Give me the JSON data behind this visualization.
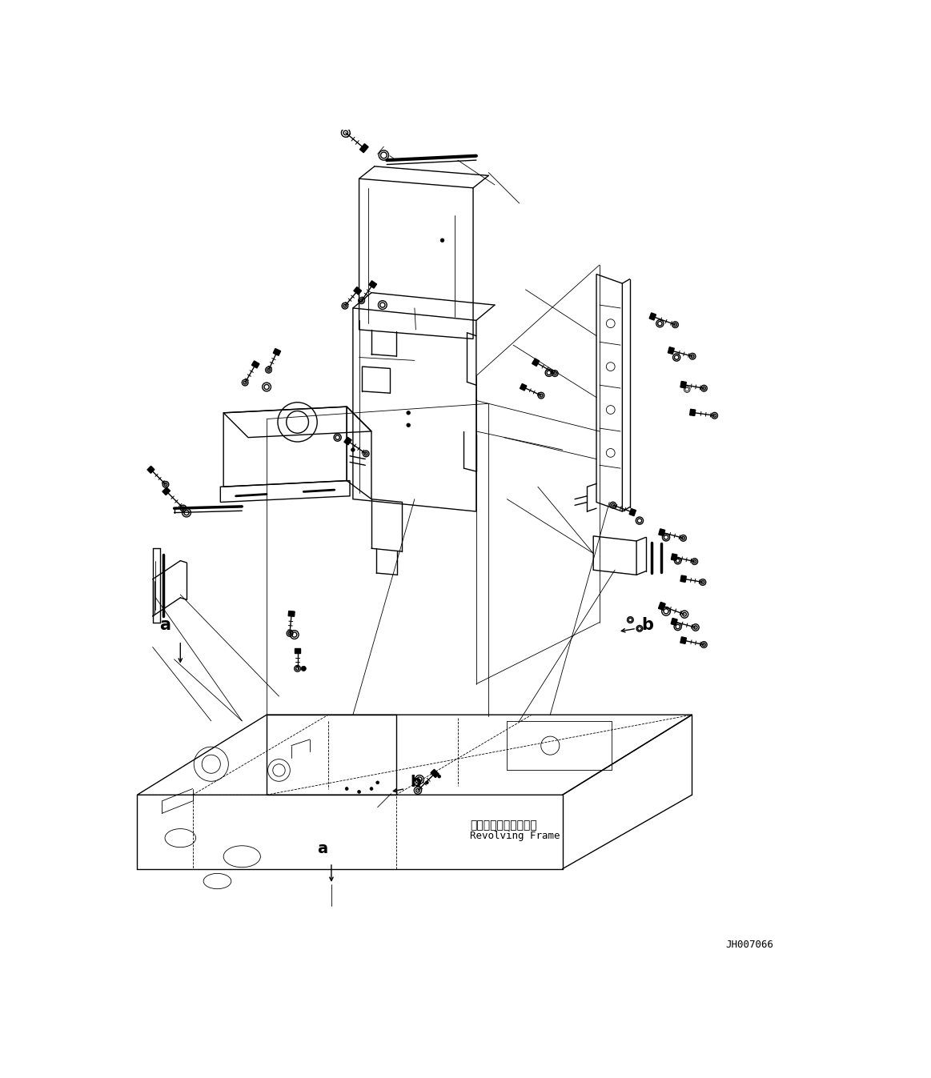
{
  "figure_width": 11.63,
  "figure_height": 13.47,
  "dpi": 100,
  "background_color": "#ffffff",
  "line_color": "#000000",
  "revolving_frame_text_line1": "レボルビングフレーム",
  "revolving_frame_text_line2": "Revolving Frame",
  "code_text": "JH007066"
}
